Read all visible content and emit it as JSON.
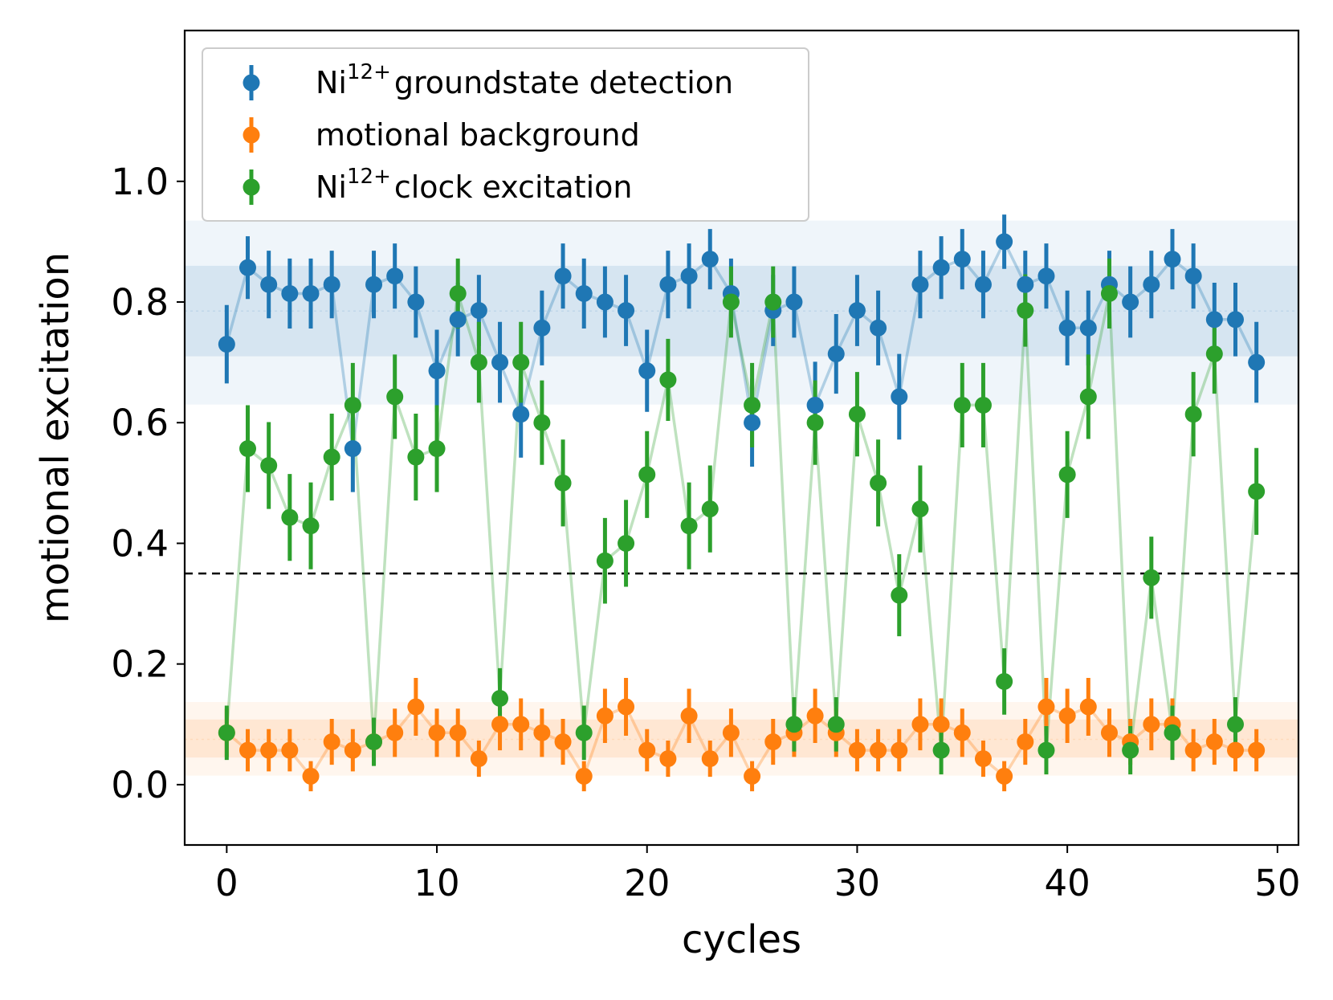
{
  "chart_data": {
    "type": "scatter",
    "xlabel": "cycles",
    "ylabel": "motional excitation",
    "xlim": [
      -2,
      51
    ],
    "ylim": [
      -0.1,
      1.25
    ],
    "xticks": [
      0,
      10,
      20,
      30,
      40,
      50
    ],
    "yticks": [
      0.0,
      0.2,
      0.4,
      0.6,
      0.8,
      1.0
    ],
    "xtick_labels": [
      "0",
      "10",
      "20",
      "30",
      "40",
      "50"
    ],
    "ytick_labels": [
      "0.0",
      "0.2",
      "0.4",
      "0.6",
      "0.8",
      "1.0"
    ],
    "threshold": {
      "y": 0.35,
      "style": "dashed",
      "color": "#000000"
    },
    "legend": {
      "location": "top-left"
    },
    "x": [
      0,
      1,
      2,
      3,
      4,
      5,
      6,
      7,
      8,
      9,
      10,
      11,
      12,
      13,
      14,
      15,
      16,
      17,
      18,
      19,
      20,
      21,
      22,
      23,
      24,
      25,
      26,
      27,
      28,
      29,
      30,
      31,
      32,
      33,
      34,
      35,
      36,
      37,
      38,
      39,
      40,
      41,
      42,
      43,
      44,
      45,
      46,
      47,
      48,
      49
    ],
    "series": [
      {
        "name": "Ni12+ groundstate detection",
        "label_base": "Ni",
        "label_sup": "12+",
        "label_rest": "groundstate detection",
        "color": "#1f77b4",
        "band": {
          "center": 0.785,
          "inner": [
            0.71,
            0.86
          ],
          "outer": [
            0.63,
            0.935
          ]
        },
        "values": [
          0.73,
          0.857,
          0.829,
          0.814,
          0.814,
          0.829,
          0.557,
          0.829,
          0.843,
          0.8,
          0.686,
          0.771,
          0.786,
          0.7,
          0.614,
          0.757,
          0.843,
          0.814,
          0.8,
          0.786,
          0.686,
          0.829,
          0.843,
          0.871,
          0.814,
          0.6,
          0.786,
          0.8,
          0.629,
          0.714,
          0.786,
          0.757,
          0.643,
          0.829,
          0.857,
          0.871,
          0.829,
          0.9,
          0.829,
          0.843,
          0.757,
          0.757,
          0.829,
          0.8,
          0.829,
          0.871,
          0.843,
          0.771,
          0.771,
          0.7
        ],
        "errors": [
          0.065,
          0.052,
          0.056,
          0.058,
          0.058,
          0.056,
          0.072,
          0.056,
          0.054,
          0.059,
          0.068,
          0.061,
          0.059,
          0.067,
          0.072,
          0.062,
          0.054,
          0.058,
          0.059,
          0.059,
          0.068,
          0.056,
          0.054,
          0.05,
          0.058,
          0.073,
          0.059,
          0.059,
          0.072,
          0.066,
          0.059,
          0.062,
          0.071,
          0.056,
          0.052,
          0.05,
          0.056,
          0.045,
          0.056,
          0.054,
          0.062,
          0.062,
          0.056,
          0.059,
          0.056,
          0.05,
          0.054,
          0.061,
          0.061,
          0.067
        ]
      },
      {
        "name": "motional background",
        "label_base": "motional background",
        "label_sup": "",
        "label_rest": "",
        "color": "#ff7f0e",
        "band": {
          "center": 0.075,
          "inner": [
            0.045,
            0.108
          ],
          "outer": [
            0.015,
            0.137
          ]
        },
        "values": [
          0.086,
          0.057,
          0.057,
          0.057,
          0.014,
          0.071,
          0.057,
          0.071,
          0.086,
          0.129,
          0.086,
          0.086,
          0.043,
          0.1,
          0.1,
          0.086,
          0.071,
          0.014,
          0.114,
          0.129,
          0.057,
          0.043,
          0.114,
          0.043,
          0.086,
          0.014,
          0.071,
          0.086,
          0.114,
          0.086,
          0.057,
          0.057,
          0.057,
          0.1,
          0.1,
          0.086,
          0.043,
          0.014,
          0.071,
          0.129,
          0.114,
          0.129,
          0.086,
          0.071,
          0.1,
          0.1,
          0.057,
          0.071,
          0.057,
          0.057
        ],
        "errors": [
          0.04,
          0.035,
          0.035,
          0.035,
          0.025,
          0.038,
          0.035,
          0.038,
          0.04,
          0.048,
          0.04,
          0.04,
          0.03,
          0.043,
          0.043,
          0.04,
          0.038,
          0.025,
          0.045,
          0.048,
          0.035,
          0.03,
          0.045,
          0.03,
          0.04,
          0.025,
          0.038,
          0.04,
          0.045,
          0.04,
          0.035,
          0.035,
          0.035,
          0.043,
          0.043,
          0.04,
          0.03,
          0.025,
          0.038,
          0.048,
          0.045,
          0.048,
          0.04,
          0.038,
          0.043,
          0.043,
          0.035,
          0.038,
          0.035,
          0.035
        ]
      },
      {
        "name": "Ni12+ clock excitation",
        "label_base": "Ni",
        "label_sup": "12+",
        "label_rest": "clock excitation",
        "color": "#2ca02c",
        "values": [
          0.086,
          0.557,
          0.529,
          0.443,
          0.429,
          0.543,
          0.629,
          0.071,
          0.643,
          0.543,
          0.557,
          0.814,
          0.7,
          0.143,
          0.7,
          0.6,
          0.5,
          0.086,
          0.371,
          0.4,
          0.514,
          0.671,
          0.429,
          0.457,
          0.8,
          0.629,
          0.8,
          0.1,
          0.6,
          0.1,
          0.614,
          0.5,
          0.314,
          0.457,
          0.057,
          0.629,
          0.629,
          0.171,
          0.786,
          0.057,
          0.514,
          0.643,
          0.814,
          0.057,
          0.343,
          0.086,
          0.614,
          0.714,
          0.1,
          0.486
        ],
        "errors": [
          0.045,
          0.072,
          0.072,
          0.072,
          0.072,
          0.072,
          0.07,
          0.04,
          0.07,
          0.072,
          0.072,
          0.058,
          0.067,
          0.05,
          0.067,
          0.07,
          0.072,
          0.045,
          0.071,
          0.072,
          0.072,
          0.068,
          0.072,
          0.072,
          0.059,
          0.07,
          0.059,
          0.045,
          0.07,
          0.045,
          0.07,
          0.072,
          0.068,
          0.072,
          0.04,
          0.07,
          0.07,
          0.055,
          0.06,
          0.04,
          0.072,
          0.07,
          0.058,
          0.04,
          0.068,
          0.045,
          0.07,
          0.066,
          0.045,
          0.072
        ]
      }
    ]
  }
}
